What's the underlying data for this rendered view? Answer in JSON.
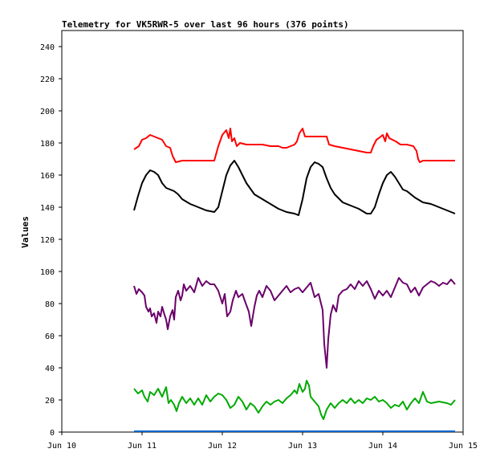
{
  "chart_data": {
    "type": "line",
    "title": "Telemetry for VK5RWR-5 over last 96 hours (376 points)",
    "xlabel": "",
    "ylabel": "Values",
    "ylim": [
      0,
      250
    ],
    "xlim": [
      10,
      15
    ],
    "x_tick_labels": [
      "Jun 10",
      "Jun 11",
      "Jun 12",
      "Jun 13",
      "Jun 14",
      "Jun 15"
    ],
    "x_tick_values": [
      10,
      11,
      12,
      13,
      14,
      15
    ],
    "y_ticks": [
      0,
      20,
      40,
      60,
      80,
      100,
      120,
      140,
      160,
      180,
      200,
      220,
      240
    ],
    "grid": false,
    "legend": "none",
    "series": [
      {
        "color": "#ff0000",
        "points": [
          [
            10.9,
            176
          ],
          [
            10.96,
            178
          ],
          [
            11.0,
            182
          ],
          [
            11.05,
            183
          ],
          [
            11.1,
            185
          ],
          [
            11.15,
            184
          ],
          [
            11.2,
            183
          ],
          [
            11.25,
            182
          ],
          [
            11.3,
            178
          ],
          [
            11.35,
            177
          ],
          [
            11.38,
            172
          ],
          [
            11.42,
            168
          ],
          [
            11.5,
            169
          ],
          [
            11.6,
            169
          ],
          [
            11.7,
            169
          ],
          [
            11.8,
            169
          ],
          [
            11.9,
            169
          ],
          [
            11.95,
            178
          ],
          [
            12.0,
            185
          ],
          [
            12.05,
            188
          ],
          [
            12.08,
            183
          ],
          [
            12.1,
            189
          ],
          [
            12.12,
            181
          ],
          [
            12.15,
            183
          ],
          [
            12.18,
            178
          ],
          [
            12.22,
            180
          ],
          [
            12.3,
            179
          ],
          [
            12.4,
            179
          ],
          [
            12.5,
            179
          ],
          [
            12.6,
            178
          ],
          [
            12.7,
            178
          ],
          [
            12.75,
            177
          ],
          [
            12.8,
            177
          ],
          [
            12.85,
            178
          ],
          [
            12.9,
            179
          ],
          [
            12.93,
            181
          ],
          [
            12.96,
            186
          ],
          [
            13.0,
            189
          ],
          [
            13.03,
            184
          ],
          [
            13.1,
            184
          ],
          [
            13.2,
            184
          ],
          [
            13.3,
            184
          ],
          [
            13.33,
            179
          ],
          [
            13.4,
            178
          ],
          [
            13.5,
            177
          ],
          [
            13.6,
            176
          ],
          [
            13.7,
            175
          ],
          [
            13.8,
            174
          ],
          [
            13.85,
            174
          ],
          [
            13.88,
            178
          ],
          [
            13.92,
            182
          ],
          [
            13.95,
            183
          ],
          [
            14.0,
            185
          ],
          [
            14.03,
            181
          ],
          [
            14.05,
            186
          ],
          [
            14.08,
            183
          ],
          [
            14.12,
            182
          ],
          [
            14.16,
            181
          ],
          [
            14.22,
            179
          ],
          [
            14.3,
            179
          ],
          [
            14.38,
            178
          ],
          [
            14.42,
            175
          ],
          [
            14.44,
            170
          ],
          [
            14.46,
            168
          ],
          [
            14.5,
            169
          ],
          [
            14.6,
            169
          ],
          [
            14.7,
            169
          ],
          [
            14.8,
            169
          ],
          [
            14.9,
            169
          ]
        ]
      },
      {
        "color": "#000000",
        "points": [
          [
            10.9,
            138
          ],
          [
            10.95,
            147
          ],
          [
            11.0,
            155
          ],
          [
            11.05,
            160
          ],
          [
            11.1,
            163
          ],
          [
            11.15,
            162
          ],
          [
            11.2,
            160
          ],
          [
            11.25,
            155
          ],
          [
            11.3,
            152
          ],
          [
            11.35,
            151
          ],
          [
            11.4,
            150
          ],
          [
            11.45,
            148
          ],
          [
            11.5,
            145
          ],
          [
            11.6,
            142
          ],
          [
            11.7,
            140
          ],
          [
            11.8,
            138
          ],
          [
            11.9,
            137
          ],
          [
            11.95,
            140
          ],
          [
            12.0,
            150
          ],
          [
            12.05,
            160
          ],
          [
            12.1,
            166
          ],
          [
            12.15,
            169
          ],
          [
            12.2,
            165
          ],
          [
            12.3,
            155
          ],
          [
            12.4,
            148
          ],
          [
            12.5,
            145
          ],
          [
            12.6,
            142
          ],
          [
            12.7,
            139
          ],
          [
            12.8,
            137
          ],
          [
            12.9,
            136
          ],
          [
            12.95,
            135
          ],
          [
            13.0,
            145
          ],
          [
            13.05,
            158
          ],
          [
            13.1,
            165
          ],
          [
            13.15,
            168
          ],
          [
            13.2,
            167
          ],
          [
            13.25,
            165
          ],
          [
            13.3,
            158
          ],
          [
            13.35,
            152
          ],
          [
            13.4,
            148
          ],
          [
            13.5,
            143
          ],
          [
            13.6,
            141
          ],
          [
            13.7,
            139
          ],
          [
            13.8,
            136
          ],
          [
            13.85,
            136
          ],
          [
            13.9,
            140
          ],
          [
            13.95,
            148
          ],
          [
            14.0,
            155
          ],
          [
            14.05,
            160
          ],
          [
            14.1,
            162
          ],
          [
            14.15,
            159
          ],
          [
            14.2,
            155
          ],
          [
            14.25,
            151
          ],
          [
            14.3,
            150
          ],
          [
            14.4,
            146
          ],
          [
            14.5,
            143
          ],
          [
            14.6,
            142
          ],
          [
            14.7,
            140
          ],
          [
            14.8,
            138
          ],
          [
            14.9,
            136
          ]
        ]
      },
      {
        "color": "#6a006a",
        "points": [
          [
            10.9,
            91
          ],
          [
            10.93,
            86
          ],
          [
            10.96,
            89
          ],
          [
            11.0,
            87
          ],
          [
            11.03,
            85
          ],
          [
            11.05,
            78
          ],
          [
            11.08,
            75
          ],
          [
            11.1,
            77
          ],
          [
            11.12,
            72
          ],
          [
            11.15,
            74
          ],
          [
            11.18,
            68
          ],
          [
            11.2,
            75
          ],
          [
            11.23,
            72
          ],
          [
            11.25,
            78
          ],
          [
            11.28,
            73
          ],
          [
            11.3,
            70
          ],
          [
            11.32,
            64
          ],
          [
            11.35,
            72
          ],
          [
            11.38,
            76
          ],
          [
            11.4,
            70
          ],
          [
            11.42,
            84
          ],
          [
            11.45,
            88
          ],
          [
            11.48,
            82
          ],
          [
            11.5,
            85
          ],
          [
            11.52,
            92
          ],
          [
            11.55,
            88
          ],
          [
            11.6,
            91
          ],
          [
            11.65,
            87
          ],
          [
            11.7,
            96
          ],
          [
            11.75,
            91
          ],
          [
            11.8,
            94
          ],
          [
            11.85,
            92
          ],
          [
            11.9,
            92
          ],
          [
            11.95,
            88
          ],
          [
            12.0,
            80
          ],
          [
            12.03,
            86
          ],
          [
            12.06,
            72
          ],
          [
            12.1,
            75
          ],
          [
            12.13,
            82
          ],
          [
            12.17,
            88
          ],
          [
            12.2,
            84
          ],
          [
            12.25,
            86
          ],
          [
            12.3,
            79
          ],
          [
            12.33,
            75
          ],
          [
            12.36,
            66
          ],
          [
            12.4,
            78
          ],
          [
            12.43,
            85
          ],
          [
            12.46,
            88
          ],
          [
            12.5,
            84
          ],
          [
            12.55,
            91
          ],
          [
            12.6,
            88
          ],
          [
            12.65,
            82
          ],
          [
            12.7,
            85
          ],
          [
            12.75,
            88
          ],
          [
            12.8,
            91
          ],
          [
            12.85,
            87
          ],
          [
            12.9,
            89
          ],
          [
            12.95,
            90
          ],
          [
            13.0,
            87
          ],
          [
            13.05,
            90
          ],
          [
            13.1,
            93
          ],
          [
            13.15,
            84
          ],
          [
            13.2,
            86
          ],
          [
            13.23,
            80
          ],
          [
            13.25,
            76
          ],
          [
            13.27,
            55
          ],
          [
            13.29,
            45
          ],
          [
            13.3,
            40
          ],
          [
            13.32,
            58
          ],
          [
            13.35,
            73
          ],
          [
            13.38,
            79
          ],
          [
            13.42,
            75
          ],
          [
            13.45,
            85
          ],
          [
            13.5,
            88
          ],
          [
            13.55,
            89
          ],
          [
            13.6,
            92
          ],
          [
            13.65,
            89
          ],
          [
            13.7,
            94
          ],
          [
            13.75,
            91
          ],
          [
            13.8,
            94
          ],
          [
            13.85,
            89
          ],
          [
            13.9,
            83
          ],
          [
            13.95,
            88
          ],
          [
            14.0,
            85
          ],
          [
            14.05,
            88
          ],
          [
            14.1,
            84
          ],
          [
            14.15,
            90
          ],
          [
            14.2,
            96
          ],
          [
            14.25,
            93
          ],
          [
            14.3,
            92
          ],
          [
            14.35,
            87
          ],
          [
            14.4,
            90
          ],
          [
            14.45,
            85
          ],
          [
            14.5,
            90
          ],
          [
            14.55,
            92
          ],
          [
            14.6,
            94
          ],
          [
            14.65,
            93
          ],
          [
            14.7,
            91
          ],
          [
            14.75,
            93
          ],
          [
            14.8,
            92
          ],
          [
            14.85,
            95
          ],
          [
            14.9,
            92
          ]
        ]
      },
      {
        "color": "#00aa00",
        "points": [
          [
            10.9,
            27
          ],
          [
            10.95,
            24
          ],
          [
            11.0,
            26
          ],
          [
            11.03,
            22
          ],
          [
            11.07,
            19
          ],
          [
            11.1,
            25
          ],
          [
            11.15,
            23
          ],
          [
            11.2,
            27
          ],
          [
            11.25,
            22
          ],
          [
            11.3,
            28
          ],
          [
            11.33,
            18
          ],
          [
            11.36,
            20
          ],
          [
            11.4,
            17
          ],
          [
            11.43,
            13
          ],
          [
            11.46,
            18
          ],
          [
            11.5,
            22
          ],
          [
            11.55,
            18
          ],
          [
            11.6,
            21
          ],
          [
            11.65,
            17
          ],
          [
            11.7,
            21
          ],
          [
            11.75,
            17
          ],
          [
            11.8,
            23
          ],
          [
            11.85,
            19
          ],
          [
            11.9,
            22
          ],
          [
            11.95,
            24
          ],
          [
            12.0,
            23
          ],
          [
            12.05,
            20
          ],
          [
            12.1,
            15
          ],
          [
            12.15,
            17
          ],
          [
            12.2,
            22
          ],
          [
            12.25,
            19
          ],
          [
            12.3,
            14
          ],
          [
            12.35,
            18
          ],
          [
            12.4,
            16
          ],
          [
            12.45,
            12
          ],
          [
            12.5,
            16
          ],
          [
            12.55,
            19
          ],
          [
            12.6,
            17
          ],
          [
            12.65,
            19
          ],
          [
            12.7,
            20
          ],
          [
            12.75,
            18
          ],
          [
            12.8,
            21
          ],
          [
            12.85,
            23
          ],
          [
            12.9,
            26
          ],
          [
            12.93,
            24
          ],
          [
            12.96,
            30
          ],
          [
            13.0,
            25
          ],
          [
            13.03,
            27
          ],
          [
            13.05,
            32
          ],
          [
            13.08,
            29
          ],
          [
            13.1,
            22
          ],
          [
            13.15,
            19
          ],
          [
            13.2,
            16
          ],
          [
            13.23,
            11
          ],
          [
            13.26,
            8
          ],
          [
            13.3,
            14
          ],
          [
            13.35,
            18
          ],
          [
            13.4,
            15
          ],
          [
            13.45,
            18
          ],
          [
            13.5,
            20
          ],
          [
            13.55,
            18
          ],
          [
            13.6,
            21
          ],
          [
            13.65,
            18
          ],
          [
            13.7,
            20
          ],
          [
            13.75,
            18
          ],
          [
            13.8,
            21
          ],
          [
            13.85,
            20
          ],
          [
            13.9,
            22
          ],
          [
            13.95,
            19
          ],
          [
            14.0,
            20
          ],
          [
            14.05,
            18
          ],
          [
            14.1,
            15
          ],
          [
            14.15,
            17
          ],
          [
            14.2,
            16
          ],
          [
            14.25,
            19
          ],
          [
            14.3,
            14
          ],
          [
            14.35,
            18
          ],
          [
            14.4,
            21
          ],
          [
            14.45,
            18
          ],
          [
            14.5,
            25
          ],
          [
            14.55,
            19
          ],
          [
            14.6,
            18
          ],
          [
            14.7,
            19
          ],
          [
            14.8,
            18
          ],
          [
            14.85,
            17
          ],
          [
            14.9,
            20
          ]
        ]
      },
      {
        "color": "#0066cc",
        "points": [
          [
            10.9,
            0.5
          ],
          [
            14.9,
            0.5
          ]
        ]
      }
    ]
  }
}
